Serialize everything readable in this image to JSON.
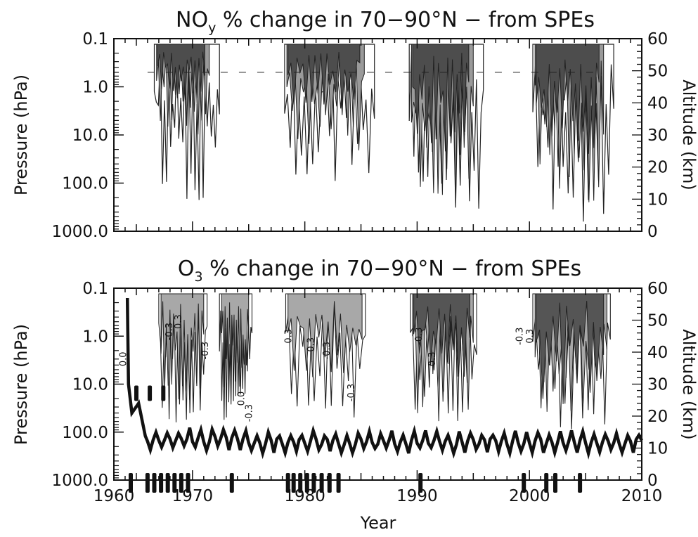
{
  "chart_data": [
    {
      "type": "heatmap",
      "title_main": "NO",
      "title_sub": "y",
      "title_rest": " % change in 70−90°N − from SPEs",
      "xlabel": "",
      "ylabel_left": "Pressure (hPa)",
      "ylabel_right": "Altitude (km)",
      "xlim": [
        1963,
        2010
      ],
      "y_log_scale": true,
      "ylim_pressure_hPa": [
        1000,
        0.1
      ],
      "y_ticks": [
        "0.1",
        "1.0",
        "10.0",
        "100.0",
        "1000.0"
      ],
      "y_tick_values": [
        0.1,
        1,
        10,
        100,
        1000
      ],
      "alt_ticks": [
        "0",
        "10",
        "20",
        "30",
        "40",
        "50",
        "60"
      ],
      "alt_tick_values": [
        0,
        10,
        20,
        30,
        40,
        50,
        60
      ],
      "x_ticks_labeled": false,
      "enhancement_events": [
        {
          "start": 1966.6,
          "end": 1971.5,
          "bottom_hPa": 200,
          "light_bottom_hPa": 10,
          "dark_bottom_hPa": 2
        },
        {
          "start": 1978.2,
          "end": 1985.3,
          "bottom_hPa": 100,
          "light_bottom_hPa": 20,
          "dark_bottom_hPa": 3
        },
        {
          "start": 1989.3,
          "end": 1995.0,
          "bottom_hPa": 600,
          "light_bottom_hPa": 300,
          "dark_bottom_hPa": 30
        },
        {
          "start": 2000.3,
          "end": 2006.6,
          "bottom_hPa": 600,
          "light_bottom_hPa": 300,
          "dark_bottom_hPa": 30
        }
      ]
    },
    {
      "type": "heatmap",
      "title_main": "O",
      "title_sub": "3",
      "title_rest": " % change in 70−90°N − from SPEs",
      "xlabel": "Year",
      "ylabel_left": "Pressure (hPa)",
      "ylabel_right": "Altitude (km)",
      "xlim": [
        1963,
        2010
      ],
      "x_ticks": [
        "1960",
        "1970",
        "1980",
        "1990",
        "2000",
        "2010"
      ],
      "x_tick_values": [
        1960,
        1970,
        1980,
        1990,
        2000,
        2010
      ],
      "y_log_scale": true,
      "ylim_pressure_hPa": [
        1000,
        0.1
      ],
      "y_ticks": [
        "0.1",
        "1.0",
        "10.0",
        "100.0",
        "1000.0"
      ],
      "y_tick_values": [
        0.1,
        1,
        10,
        100,
        1000
      ],
      "alt_ticks": [
        "0",
        "10",
        "20",
        "30",
        "40",
        "50",
        "60"
      ],
      "alt_tick_values": [
        0,
        10,
        20,
        30,
        40,
        50,
        60
      ],
      "contour_labels": [
        "0.0",
        "-0.3",
        "0.3",
        "-0.3",
        "0.0",
        "-0.3",
        "0.3",
        "0.3",
        "-0.3",
        "-0.3",
        "-0.3",
        "0.3",
        "-0.3",
        "0.3"
      ],
      "depletion_events": [
        {
          "start": 1967.0,
          "end": 1971.3,
          "bottom_hPa": 60,
          "light_bottom_hPa": 20
        },
        {
          "start": 1972.4,
          "end": 1975.3,
          "bottom_hPa": 60,
          "light_bottom_hPa": 30
        },
        {
          "start": 1978.3,
          "end": 1985.4,
          "bottom_hPa": 60,
          "light_bottom_hPa": 8
        },
        {
          "start": 1989.4,
          "end": 1995.3,
          "bottom_hPa": 60,
          "light_bottom_hPa": 40,
          "dark_bottom_hPa": 10
        },
        {
          "start": 2000.3,
          "end": 2007.2,
          "bottom_hPa": 120,
          "light_bottom_hPa": 60,
          "dark_bottom_hPa": 30
        }
      ]
    }
  ]
}
